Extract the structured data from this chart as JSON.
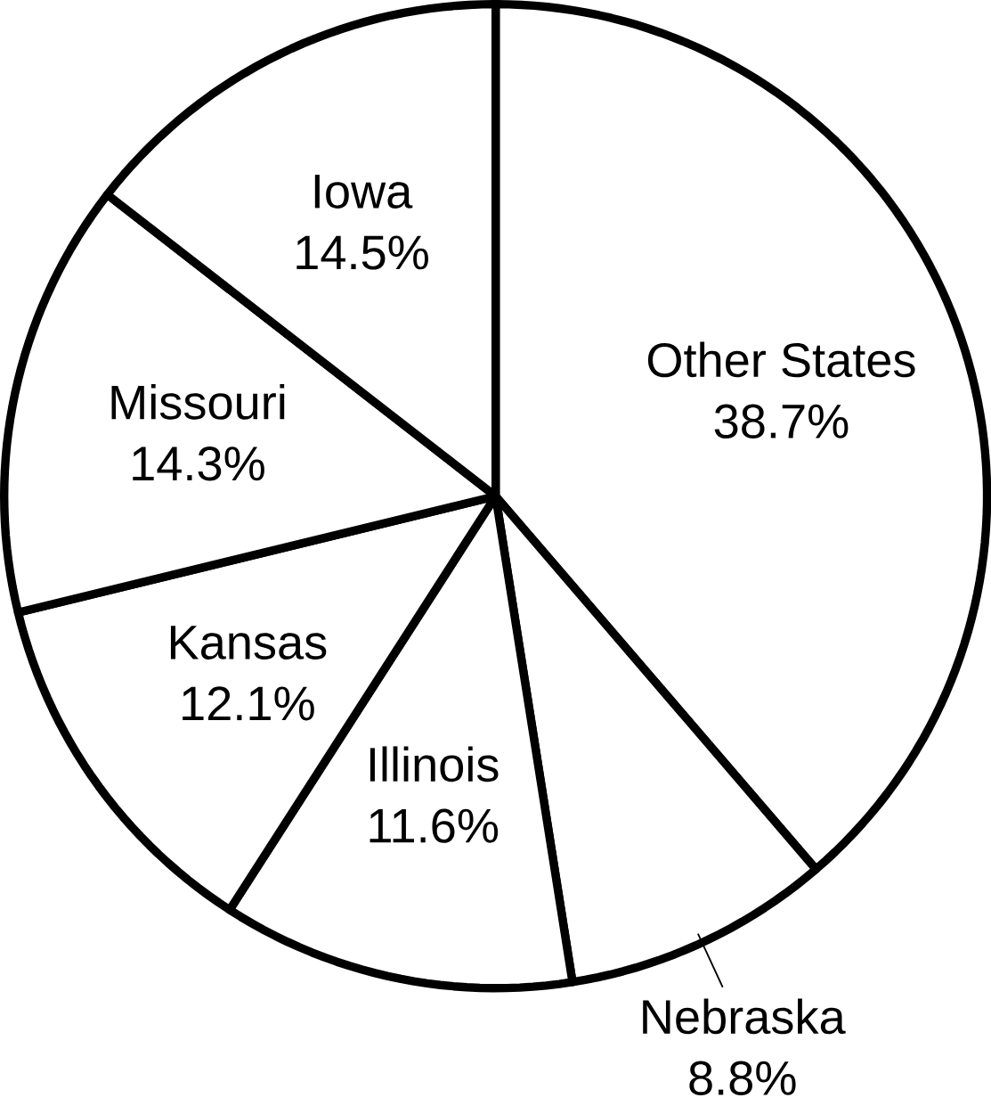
{
  "chart_data": {
    "type": "pie",
    "categories": [
      "Other States",
      "Nebraska",
      "Illinois",
      "Kansas",
      "Missouri",
      "Iowa"
    ],
    "values": [
      38.7,
      8.8,
      11.6,
      12.1,
      14.3,
      14.5
    ],
    "value_labels": [
      "38.7%",
      "8.8%",
      "11.6%",
      "12.1%",
      "14.3%",
      "14.5%"
    ],
    "colors": [
      "#ffffff",
      "#ffffff",
      "#ffffff",
      "#ffffff",
      "#ffffff",
      "#ffffff"
    ]
  }
}
